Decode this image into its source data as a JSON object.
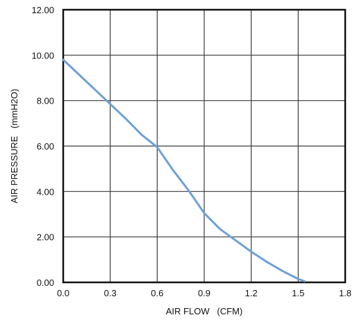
{
  "chart_data": {
    "type": "line",
    "title": "",
    "xlabel": "AIR FLOW   (CFM)",
    "ylabel": "AIR PRESSURE   (mmH2O)",
    "xlim": [
      0,
      1.8
    ],
    "ylim": [
      0,
      12
    ],
    "x_ticks": [
      0,
      0.3,
      0.6,
      0.9,
      1.2,
      1.5,
      1.8
    ],
    "x_tick_labels": [
      "0.0",
      "0.3",
      "0.6",
      "0.9",
      "1.2",
      "1.5",
      "1.8"
    ],
    "y_ticks": [
      0,
      2,
      4,
      6,
      8,
      10,
      12
    ],
    "y_tick_labels": [
      "0.00",
      "2.00",
      "4.00",
      "6.00",
      "8.00",
      "10.00",
      "12.00"
    ],
    "grid": true,
    "series": [
      {
        "color": "#6fa0d4",
        "x": [
          0.0,
          0.1,
          0.2,
          0.3,
          0.4,
          0.5,
          0.6,
          0.7,
          0.8,
          0.9,
          1.0,
          1.1,
          1.2,
          1.3,
          1.4,
          1.5,
          1.54
        ],
        "y": [
          9.8,
          9.15,
          8.5,
          7.85,
          7.2,
          6.5,
          5.95,
          4.95,
          4.05,
          3.05,
          2.35,
          1.85,
          1.35,
          0.9,
          0.5,
          0.15,
          0.05
        ]
      }
    ]
  }
}
